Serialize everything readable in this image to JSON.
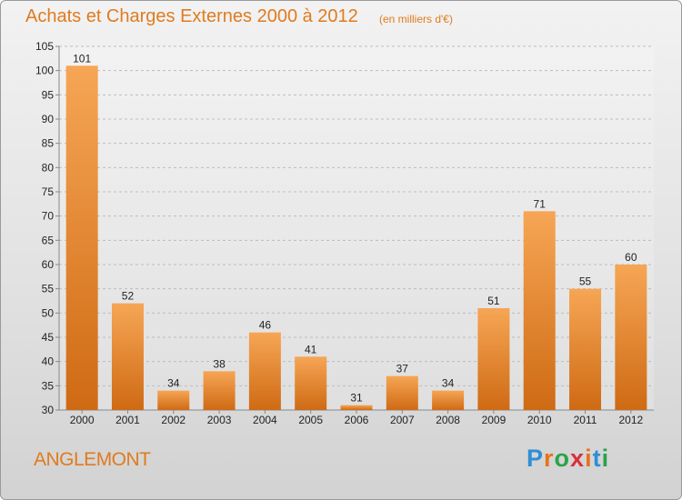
{
  "header": {
    "title": "Achats et Charges Externes 2000 à 2012",
    "unit": "(en milliers d'€)"
  },
  "footer": {
    "location": "ANGLEMONT",
    "logo": [
      "P",
      "r",
      "o",
      "x",
      "i",
      "t",
      "i"
    ]
  },
  "colors": {
    "accent": "#e07b1f",
    "bar_top": "#f6a655",
    "bar_bottom": "#cf6a14",
    "logo": [
      "#2e8fd6",
      "#e8731a",
      "#2aa34a",
      "#d8313a",
      "#e8731a",
      "#2e8fd6",
      "#2aa34a"
    ]
  },
  "chart_data": {
    "type": "bar",
    "title": "Achats et Charges Externes 2000 à 2012",
    "subtitle": "(en milliers d'€)",
    "xlabel": "",
    "ylabel": "",
    "categories": [
      "2000",
      "2001",
      "2002",
      "2003",
      "2004",
      "2005",
      "2006",
      "2007",
      "2008",
      "2009",
      "2010",
      "2011",
      "2012"
    ],
    "values": [
      101,
      52,
      34,
      38,
      46,
      41,
      31,
      37,
      34,
      51,
      71,
      55,
      60
    ],
    "ylim": [
      30,
      105
    ],
    "yticks": [
      30,
      35,
      40,
      45,
      50,
      55,
      60,
      65,
      70,
      75,
      80,
      85,
      90,
      95,
      100,
      105
    ],
    "grid": true,
    "legend": "none"
  }
}
